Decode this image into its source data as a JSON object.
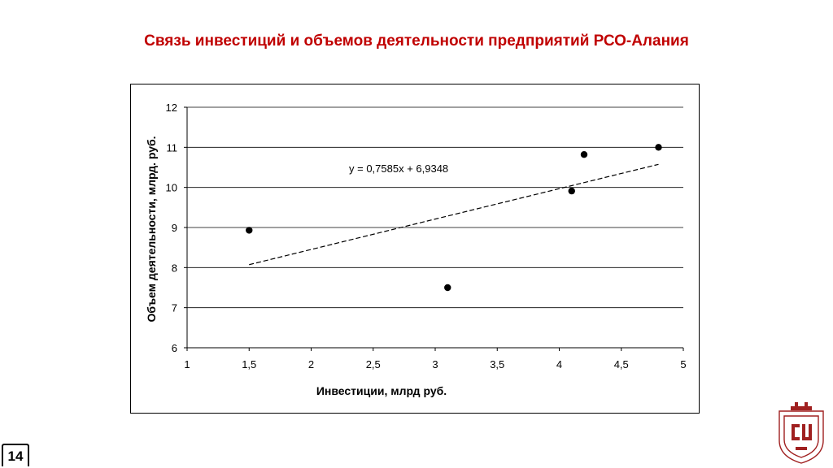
{
  "slide": {
    "title": "Связь инвестиций и объемов деятельности предприятий РСО-Алания",
    "page_number": "14"
  },
  "chart_data": {
    "type": "scatter",
    "xlabel": "Инвестиции, млрд  руб.",
    "ylabel": "Объем деятельности, млрд. руб.",
    "xlim": [
      1,
      5
    ],
    "ylim": [
      6,
      12
    ],
    "x_ticks": [
      1,
      1.5,
      2,
      2.5,
      3,
      3.5,
      4,
      4.5,
      5
    ],
    "y_ticks": [
      6,
      7,
      8,
      9,
      10,
      11,
      12
    ],
    "x_tick_labels": [
      "1",
      "1,5",
      "2",
      "2,5",
      "3",
      "3,5",
      "4",
      "4,5",
      "5"
    ],
    "y_tick_labels": [
      "6",
      "7",
      "8",
      "9",
      "10",
      "11",
      "12"
    ],
    "horizontal_grid": true,
    "points": [
      {
        "x": 1.5,
        "y": 8.93
      },
      {
        "x": 3.1,
        "y": 7.5
      },
      {
        "x": 4.1,
        "y": 9.91
      },
      {
        "x": 4.2,
        "y": 10.82
      },
      {
        "x": 4.8,
        "y": 11.0
      }
    ],
    "trendline": {
      "slope": 0.7585,
      "intercept": 6.9348,
      "x_range": [
        1.5,
        4.8
      ],
      "style": "dashed",
      "equation_label": "y = 0,7585x + 6,9348"
    },
    "colors": {
      "point": "#000000",
      "grid": "#000000",
      "title": "#c00000"
    }
  },
  "logo": {
    "icon": "university-shield-logo",
    "color": "#a02020"
  }
}
